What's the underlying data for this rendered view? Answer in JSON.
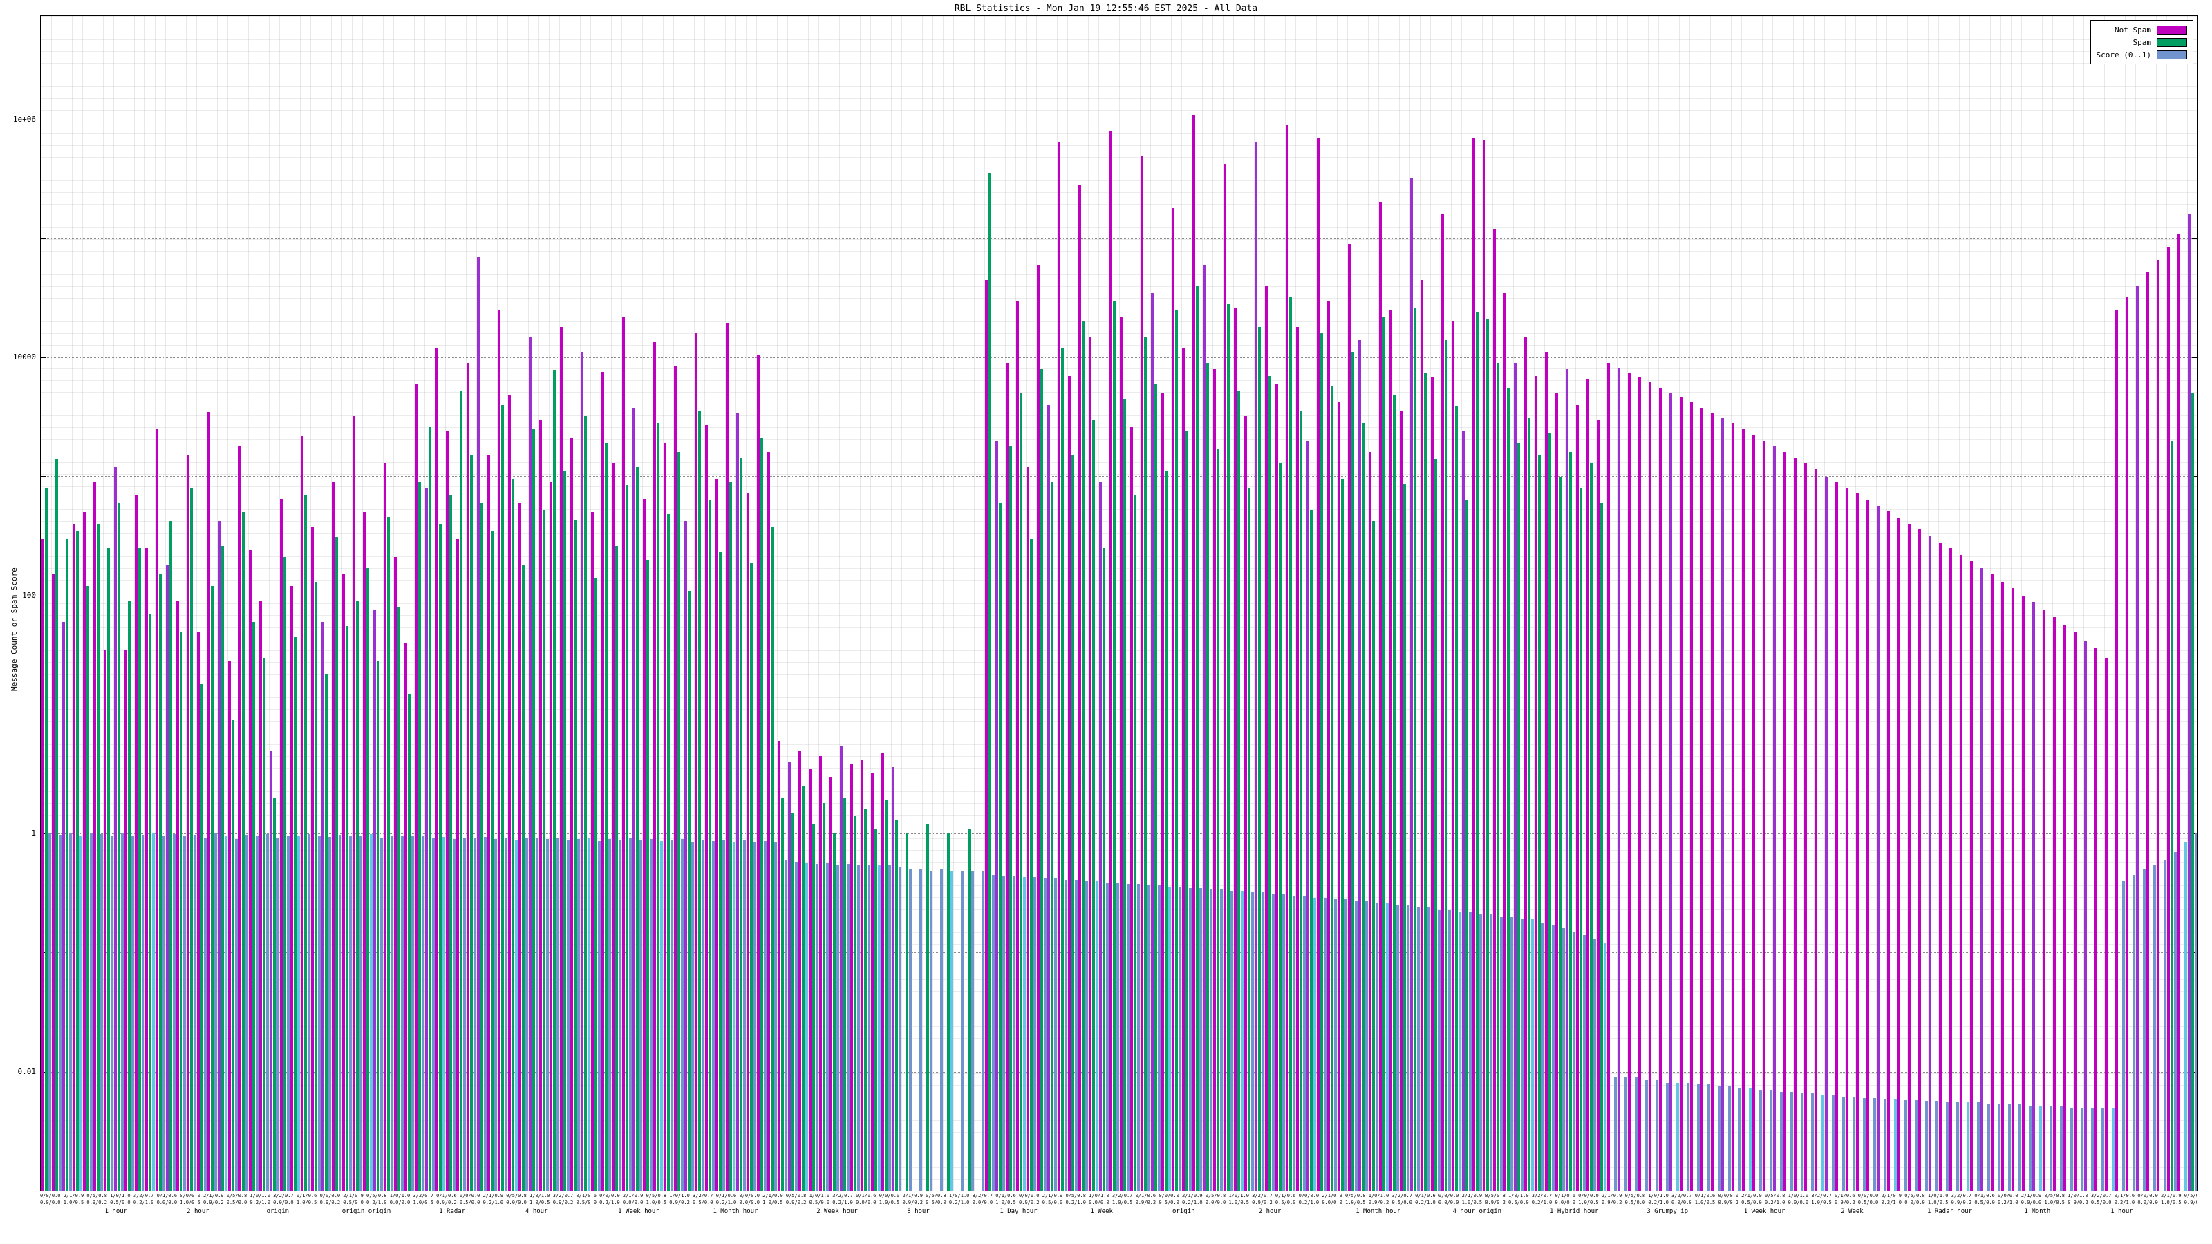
{
  "title": "RBL Statistics - Mon Jan 19 12:55:46 EST 2025 - All Data",
  "colors": {
    "not_spam": "#bf00bf",
    "not_spam_alt": "#9b30d0",
    "spam": "#009e60",
    "score": "#7194ce",
    "score_alt": "#62c6e6",
    "grid": "#8a8a8a",
    "background": "#ffffff"
  },
  "legend": {
    "items": [
      {
        "label": "Not Spam",
        "color_key": "not_spam"
      },
      {
        "label": "Spam",
        "color_key": "spam"
      },
      {
        "label": "Score (0..1)",
        "color_key": "score"
      }
    ]
  },
  "yaxis": {
    "label": "Message Count or Spam Score",
    "log_scale": true,
    "min": 0.001,
    "max": 7400000,
    "labeled_ticks": [
      {
        "value": 1000000,
        "label": "1e+06"
      },
      {
        "value": 10000,
        "label": "10000"
      },
      {
        "value": 100,
        "label": "100"
      },
      {
        "value": 1,
        "label": "1"
      },
      {
        "value": 0.01,
        "label": "0.01"
      }
    ],
    "minor_tick_decades": [
      100000,
      1000,
      10,
      0.1
    ]
  },
  "xaxis": {
    "dense_row1_samples": [
      "0/0/0.0",
      "2/1/0.9",
      "0/5/0.8",
      "1/0/1.0",
      "3/2/0.7",
      "0/1/0.6"
    ],
    "dense_row2_samples": [
      "0.0/0.0",
      "1.0/0.5",
      "0.9/0.2",
      "0.5/0.0",
      "0.2/1.0"
    ],
    "group_words": [
      {
        "t": "1 hour",
        "p": 0.03
      },
      {
        "t": "2 hour",
        "p": 0.068
      },
      {
        "t": "origin",
        "p": 0.105
      },
      {
        "t": "origin origin",
        "p": 0.14
      },
      {
        "t": "1 Radar",
        "p": 0.185
      },
      {
        "t": "4 hour",
        "p": 0.225
      },
      {
        "t": "1 Week hour",
        "p": 0.268
      },
      {
        "t": "1 Month hour",
        "p": 0.312
      },
      {
        "t": "2 Week hour",
        "p": 0.36
      },
      {
        "t": "8 hour",
        "p": 0.402
      },
      {
        "t": "1 Day hour",
        "p": 0.445
      },
      {
        "t": "1 Week",
        "p": 0.487
      },
      {
        "t": "origin",
        "p": 0.525
      },
      {
        "t": "2 hour",
        "p": 0.565
      },
      {
        "t": "1 Month hour",
        "p": 0.61
      },
      {
        "t": "4 hour origin",
        "p": 0.655
      },
      {
        "t": "1 Hybrid hour",
        "p": 0.7
      },
      {
        "t": "3 Grumpy ip",
        "p": 0.745
      },
      {
        "t": "1 week hour",
        "p": 0.79
      },
      {
        "t": "2 Week",
        "p": 0.835
      },
      {
        "t": "1 Radar hour",
        "p": 0.875
      },
      {
        "t": "1 Month",
        "p": 0.92
      },
      {
        "t": "1 hour",
        "p": 0.96
      }
    ]
  },
  "chart_data": {
    "type": "bar",
    "title": "RBL Statistics - Mon Jan 19 12:55:46 EST 2025 - All Data",
    "xlabel": "",
    "ylabel": "Message Count or Spam Score",
    "y_log_scale": true,
    "ylim": [
      0.001,
      7400000
    ],
    "grid": true,
    "legend_position": "top-right",
    "series_names": [
      "Not Spam",
      "Spam",
      "Score (0..1)"
    ],
    "group_value_order": [
      "not_spam_count",
      "spam_count",
      "score_0_to_1"
    ],
    "groups": [
      [
        300,
        800,
        1.0
      ],
      [
        150,
        1400,
        0.98
      ],
      [
        60,
        300,
        1.0
      ],
      [
        400,
        350,
        0.97
      ],
      [
        500,
        120,
        1.0
      ],
      [
        900,
        400,
        0.99
      ],
      [
        35,
        250,
        0.96
      ],
      [
        1200,
        600,
        1.0
      ],
      [
        35,
        90,
        0.95
      ],
      [
        700,
        250,
        0.98
      ],
      [
        250,
        70,
        1.0
      ],
      [
        2500,
        150,
        0.97
      ],
      [
        180,
        420,
        0.99
      ],
      [
        90,
        50,
        0.95
      ],
      [
        1500,
        800,
        0.98
      ],
      [
        50,
        18,
        0.92
      ],
      [
        3500,
        120,
        1.0
      ],
      [
        420,
        260,
        0.96
      ],
      [
        28,
        9,
        0.9
      ],
      [
        1800,
        500,
        0.98
      ],
      [
        240,
        60,
        0.95
      ],
      [
        90,
        30,
        0.99
      ],
      [
        5,
        2,
        0.93
      ],
      [
        650,
        210,
        0.97
      ],
      [
        120,
        45,
        0.95
      ],
      [
        2200,
        700,
        0.99
      ],
      [
        380,
        130,
        0.96
      ],
      [
        60,
        22,
        0.94
      ],
      [
        900,
        310,
        0.98
      ],
      [
        150,
        55,
        0.95
      ],
      [
        3200,
        90,
        0.97
      ],
      [
        500,
        170,
        0.99
      ],
      [
        75,
        28,
        0.93
      ],
      [
        1300,
        460,
        0.96
      ],
      [
        210,
        80,
        0.95
      ],
      [
        40,
        15,
        0.97
      ],
      [
        6000,
        900,
        0.95
      ],
      [
        800,
        2600,
        0.92
      ],
      [
        12000,
        400,
        0.94
      ],
      [
        2400,
        700,
        0.9
      ],
      [
        300,
        5200,
        0.93
      ],
      [
        9000,
        1500,
        0.91
      ],
      [
        70000,
        600,
        0.94
      ],
      [
        1500,
        350,
        0.9
      ],
      [
        25000,
        4000,
        0.92
      ],
      [
        4800,
        950,
        0.89
      ],
      [
        600,
        180,
        0.91
      ],
      [
        15000,
        2500,
        0.93
      ],
      [
        3000,
        520,
        0.9
      ],
      [
        900,
        7800,
        0.92
      ],
      [
        18000,
        1100,
        0.88
      ],
      [
        2100,
        430,
        0.9
      ],
      [
        11000,
        3200,
        0.91
      ],
      [
        500,
        140,
        0.87
      ],
      [
        7600,
        1900,
        0.9
      ],
      [
        1300,
        260,
        0.89
      ],
      [
        22000,
        850,
        0.91
      ],
      [
        3800,
        1200,
        0.88
      ],
      [
        650,
        200,
        0.9
      ],
      [
        13500,
        2800,
        0.87
      ],
      [
        1900,
        480,
        0.89
      ],
      [
        8400,
        1600,
        0.9
      ],
      [
        420,
        110,
        0.86
      ],
      [
        16000,
        3600,
        0.88
      ],
      [
        2700,
        640,
        0.87
      ],
      [
        950,
        230,
        0.89
      ],
      [
        19500,
        900,
        0.86
      ],
      [
        3400,
        1450,
        0.88
      ],
      [
        720,
        190,
        0.85
      ],
      [
        10500,
        2100,
        0.87
      ],
      [
        1600,
        380,
        0.86
      ],
      [
        6,
        2,
        0.6
      ],
      [
        4,
        1.5,
        0.58
      ],
      [
        5,
        2.5,
        0.57
      ],
      [
        3.5,
        1.2,
        0.56
      ],
      [
        4.5,
        1.8,
        0.57
      ],
      [
        3,
        1,
        0.55
      ],
      [
        5.5,
        2,
        0.56
      ],
      [
        3.8,
        1.4,
        0.55
      ],
      [
        4.2,
        1.6,
        0.54
      ],
      [
        3.2,
        1.1,
        0.55
      ],
      [
        4.8,
        1.9,
        0.54
      ],
      [
        3.6,
        1.3,
        0.53
      ],
      [
        0,
        1,
        0.5
      ],
      [
        0,
        0,
        0.5
      ],
      [
        0,
        1.2,
        0.49
      ],
      [
        0,
        0,
        0.5
      ],
      [
        0,
        1,
        0.49
      ],
      [
        0,
        0,
        0.48
      ],
      [
        0,
        1.1,
        0.49
      ],
      [
        0,
        0,
        0.48
      ],
      [
        45000,
        350000,
        0.45
      ],
      [
        2000,
        600,
        0.44
      ],
      [
        9000,
        1800,
        0.44
      ],
      [
        30000,
        5000,
        0.43
      ],
      [
        1200,
        300,
        0.43
      ],
      [
        60000,
        8000,
        0.42
      ],
      [
        4000,
        900,
        0.42
      ],
      [
        650000,
        12000,
        0.41
      ],
      [
        7000,
        1500,
        0.41
      ],
      [
        280000,
        20000,
        0.4
      ],
      [
        15000,
        3000,
        0.4
      ],
      [
        900,
        250,
        0.39
      ],
      [
        800000,
        30000,
        0.39
      ],
      [
        22000,
        4500,
        0.38
      ],
      [
        2600,
        700,
        0.38
      ],
      [
        500000,
        15000,
        0.37
      ],
      [
        35000,
        6000,
        0.37
      ],
      [
        5000,
        1100,
        0.36
      ],
      [
        180000,
        25000,
        0.36
      ],
      [
        12000,
        2400,
        0.35
      ],
      [
        1100000,
        40000,
        0.35
      ],
      [
        60000,
        9000,
        0.34
      ],
      [
        8000,
        1700,
        0.34
      ],
      [
        420000,
        28000,
        0.33
      ],
      [
        26000,
        5200,
        0.33
      ],
      [
        3200,
        800,
        0.32
      ],
      [
        650000,
        18000,
        0.32
      ],
      [
        40000,
        7000,
        0.31
      ],
      [
        6000,
        1300,
        0.31
      ],
      [
        900000,
        32000,
        0.3
      ],
      [
        18000,
        3600,
        0.3
      ],
      [
        2000,
        520,
        0.29
      ],
      [
        700000,
        16000,
        0.29
      ],
      [
        30000,
        5800,
        0.28
      ],
      [
        4200,
        950,
        0.28
      ],
      [
        90000,
        11000,
        0.27
      ],
      [
        14000,
        2800,
        0.27
      ],
      [
        1600,
        420,
        0.26
      ],
      [
        200000,
        22000,
        0.26
      ],
      [
        25000,
        4800,
        0.25
      ],
      [
        3600,
        860,
        0.25
      ],
      [
        320000,
        26000,
        0.24
      ],
      [
        45000,
        7500,
        0.24
      ],
      [
        6800,
        1400,
        0.23
      ],
      [
        160000,
        14000,
        0.23
      ],
      [
        20000,
        3900,
        0.22
      ],
      [
        2400,
        640,
        0.22
      ],
      [
        700000,
        24000,
        0.21
      ],
      [
        680000,
        21000,
        0.21
      ],
      [
        120000,
        9000,
        0.2
      ],
      [
        35000,
        5600,
        0.2
      ],
      [
        9000,
        1900,
        0.19
      ],
      [
        15000,
        3100,
        0.19
      ],
      [
        7000,
        1500,
        0.18
      ],
      [
        11000,
        2300,
        0.17
      ],
      [
        5000,
        1000,
        0.16
      ],
      [
        8000,
        1600,
        0.15
      ],
      [
        4000,
        800,
        0.14
      ],
      [
        6500,
        1300,
        0.13
      ],
      [
        3000,
        600,
        0.12
      ],
      [
        9000,
        0,
        0.009
      ],
      [
        8200,
        0,
        0.009
      ],
      [
        7500,
        0,
        0.009
      ],
      [
        6800,
        0,
        0.0085
      ],
      [
        6200,
        0,
        0.0085
      ],
      [
        5600,
        0,
        0.008
      ],
      [
        5100,
        0,
        0.008
      ],
      [
        4600,
        0,
        0.008
      ],
      [
        4200,
        0,
        0.0078
      ],
      [
        3800,
        0,
        0.0078
      ],
      [
        3400,
        0,
        0.0075
      ],
      [
        3100,
        0,
        0.0075
      ],
      [
        2800,
        0,
        0.0073
      ],
      [
        2500,
        0,
        0.0073
      ],
      [
        2250,
        0,
        0.007
      ],
      [
        2000,
        0,
        0.007
      ],
      [
        1800,
        0,
        0.0068
      ],
      [
        1600,
        0,
        0.0068
      ],
      [
        1450,
        0,
        0.0066
      ],
      [
        1300,
        0,
        0.0066
      ],
      [
        1150,
        0,
        0.0064
      ],
      [
        1000,
        0,
        0.0064
      ],
      [
        900,
        0,
        0.0062
      ],
      [
        800,
        0,
        0.0062
      ],
      [
        720,
        0,
        0.006
      ],
      [
        640,
        0,
        0.006
      ],
      [
        570,
        0,
        0.0059
      ],
      [
        510,
        0,
        0.0059
      ],
      [
        450,
        0,
        0.0058
      ],
      [
        400,
        0,
        0.0058
      ],
      [
        360,
        0,
        0.0057
      ],
      [
        320,
        0,
        0.0057
      ],
      [
        280,
        0,
        0.0056
      ],
      [
        250,
        0,
        0.0056
      ],
      [
        220,
        0,
        0.0055
      ],
      [
        195,
        0,
        0.0055
      ],
      [
        170,
        0,
        0.0054
      ],
      [
        150,
        0,
        0.0054
      ],
      [
        130,
        0,
        0.0053
      ],
      [
        115,
        0,
        0.0053
      ],
      [
        100,
        0,
        0.0052
      ],
      [
        88,
        0,
        0.0052
      ],
      [
        76,
        0,
        0.0051
      ],
      [
        66,
        0,
        0.0051
      ],
      [
        57,
        0,
        0.005
      ],
      [
        49,
        0,
        0.005
      ],
      [
        42,
        0,
        0.005
      ],
      [
        36,
        0,
        0.005
      ],
      [
        30,
        0,
        0.005
      ],
      [
        25000,
        0,
        0.4
      ],
      [
        32000,
        0,
        0.45
      ],
      [
        40000,
        0,
        0.5
      ],
      [
        52000,
        0,
        0.55
      ],
      [
        66000,
        0,
        0.6
      ],
      [
        85000,
        2000,
        0.7
      ],
      [
        110000,
        0,
        0.85
      ],
      [
        160000,
        5000,
        1.0
      ]
    ]
  }
}
